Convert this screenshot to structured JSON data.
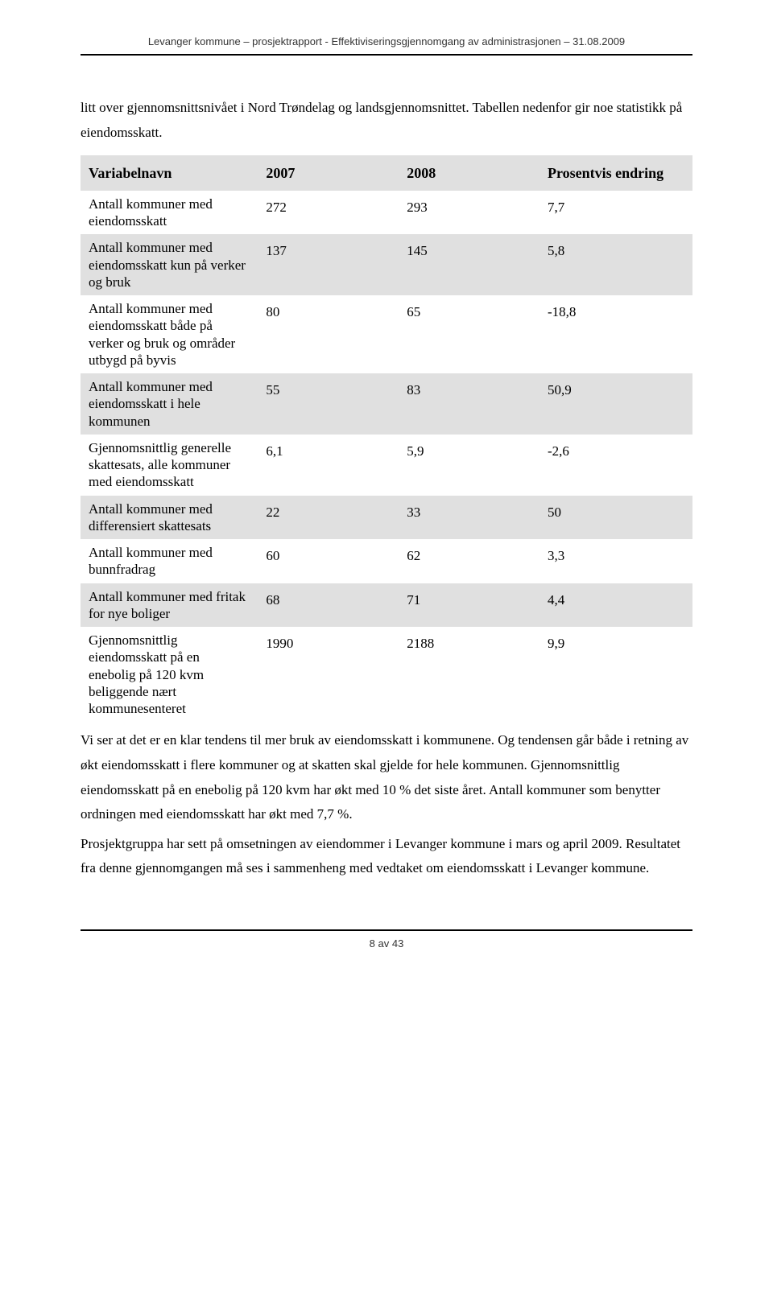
{
  "header": "Levanger kommune – prosjektrapport - Effektiviseringsgjennomgang av administrasjonen – 31.08.2009",
  "intro": "litt over gjennomsnittsnivået i Nord Trøndelag og landsgjennomsnittet. Tabellen nedenfor gir noe statistikk på eiendomsskatt.",
  "table": {
    "type": "table",
    "columns": [
      "Variabelnavn",
      "2007",
      "2008",
      "Prosentvis endring"
    ],
    "column_widths_pct": [
      29,
      23,
      23,
      25
    ],
    "header_bg": "#e0e0e0",
    "shaded_bg": "#e0e0e0",
    "font_family": "Times New Roman",
    "font_size_pt": 13,
    "rows": [
      {
        "shaded": false,
        "label": "Antall kommuner med eiendomsskatt",
        "c2007": "272",
        "c2008": "293",
        "pct": "7,7"
      },
      {
        "shaded": true,
        "label": "Antall kommuner med eiendomsskatt kun på verker og bruk",
        "c2007": "137",
        "c2008": "145",
        "pct": "5,8"
      },
      {
        "shaded": false,
        "label": "Antall kommuner med eiendomsskatt både på verker og bruk og områder utbygd på byvis",
        "c2007": "80",
        "c2008": "65",
        "pct": "-18,8"
      },
      {
        "shaded": true,
        "label": "Antall kommuner med eiendomsskatt i hele kommunen",
        "c2007": "55",
        "c2008": "83",
        "pct": "50,9"
      },
      {
        "shaded": false,
        "label": "Gjennomsnittlig generelle skattesats, alle kommuner med eiendomsskatt",
        "c2007": "6,1",
        "c2008": "5,9",
        "pct": "-2,6"
      },
      {
        "shaded": true,
        "label": "Antall kommuner med differensiert skattesats",
        "c2007": "22",
        "c2008": "33",
        "pct": "50"
      },
      {
        "shaded": false,
        "label": "Antall kommuner med bunnfradrag",
        "c2007": "60",
        "c2008": "62",
        "pct": "3,3"
      },
      {
        "shaded": true,
        "label": "Antall kommuner med fritak for nye boliger",
        "c2007": "68",
        "c2008": "71",
        "pct": "4,4"
      },
      {
        "shaded": false,
        "label": "Gjennomsnittlig eiendomsskatt på en enebolig på 120 kvm beliggende nært kommunesenteret",
        "c2007": "1990",
        "c2008": "2188",
        "pct": "9,9"
      }
    ]
  },
  "para1": "Vi ser at det er en klar tendens til mer bruk av eiendomsskatt i kommunene. Og tendensen går både i retning av økt eiendomsskatt i flere kommuner og at skatten skal gjelde for hele kommunen. Gjennomsnittlig eiendomsskatt på en enebolig på 120 kvm har økt med 10 % det siste året. Antall kommuner som benytter ordningen med eiendomsskatt har økt med 7,7 %.",
  "para2": "Prosjektgruppa har sett på omsetningen av eiendommer i Levanger kommune i mars og april 2009. Resultatet fra denne gjennomgangen må ses i sammenheng med vedtaket om eiendomsskatt i Levanger kommune.",
  "footer": "8 av 43"
}
